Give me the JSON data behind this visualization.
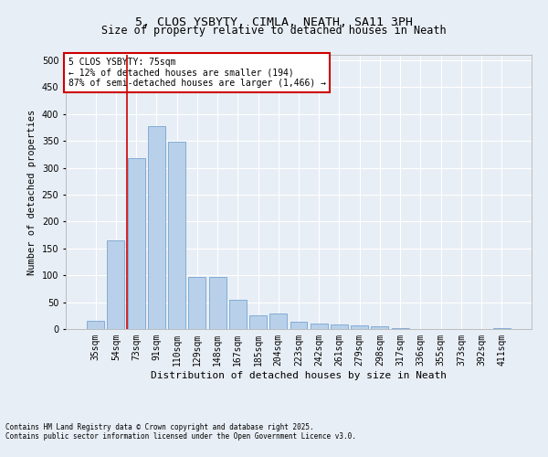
{
  "title_line1": "5, CLOS YSBYTY, CIMLA, NEATH, SA11 3PH",
  "title_line2": "Size of property relative to detached houses in Neath",
  "xlabel": "Distribution of detached houses by size in Neath",
  "ylabel": "Number of detached properties",
  "categories": [
    "35sqm",
    "54sqm",
    "73sqm",
    "91sqm",
    "110sqm",
    "129sqm",
    "148sqm",
    "167sqm",
    "185sqm",
    "204sqm",
    "223sqm",
    "242sqm",
    "261sqm",
    "279sqm",
    "298sqm",
    "317sqm",
    "336sqm",
    "355sqm",
    "373sqm",
    "392sqm",
    "411sqm"
  ],
  "values": [
    15,
    165,
    318,
    378,
    348,
    97,
    97,
    54,
    25,
    29,
    14,
    11,
    9,
    7,
    5,
    1,
    0,
    0,
    0,
    0,
    1
  ],
  "bar_color": "#b8d0ea",
  "bar_edge_color": "#6699cc",
  "vline_position": 1.55,
  "vline_color": "#cc0000",
  "annotation_title": "5 CLOS YSBYTY: 75sqm",
  "annotation_line2": "← 12% of detached houses are smaller (194)",
  "annotation_line3": "87% of semi-detached houses are larger (1,466) →",
  "annotation_box_edgecolor": "#cc0000",
  "ylim": [
    0,
    510
  ],
  "yticks": [
    0,
    50,
    100,
    150,
    200,
    250,
    300,
    350,
    400,
    450,
    500
  ],
  "footer_line1": "Contains HM Land Registry data © Crown copyright and database right 2025.",
  "footer_line2": "Contains public sector information licensed under the Open Government Licence v3.0.",
  "bg_color": "#e8eef5",
  "plot_bg_color": "#e8eef5",
  "grid_color": "#ffffff",
  "title_fontsize": 9.5,
  "subtitle_fontsize": 8.5,
  "tick_fontsize": 7,
  "ylabel_fontsize": 7.5,
  "xlabel_fontsize": 8,
  "annotation_fontsize": 7,
  "footer_fontsize": 5.5
}
